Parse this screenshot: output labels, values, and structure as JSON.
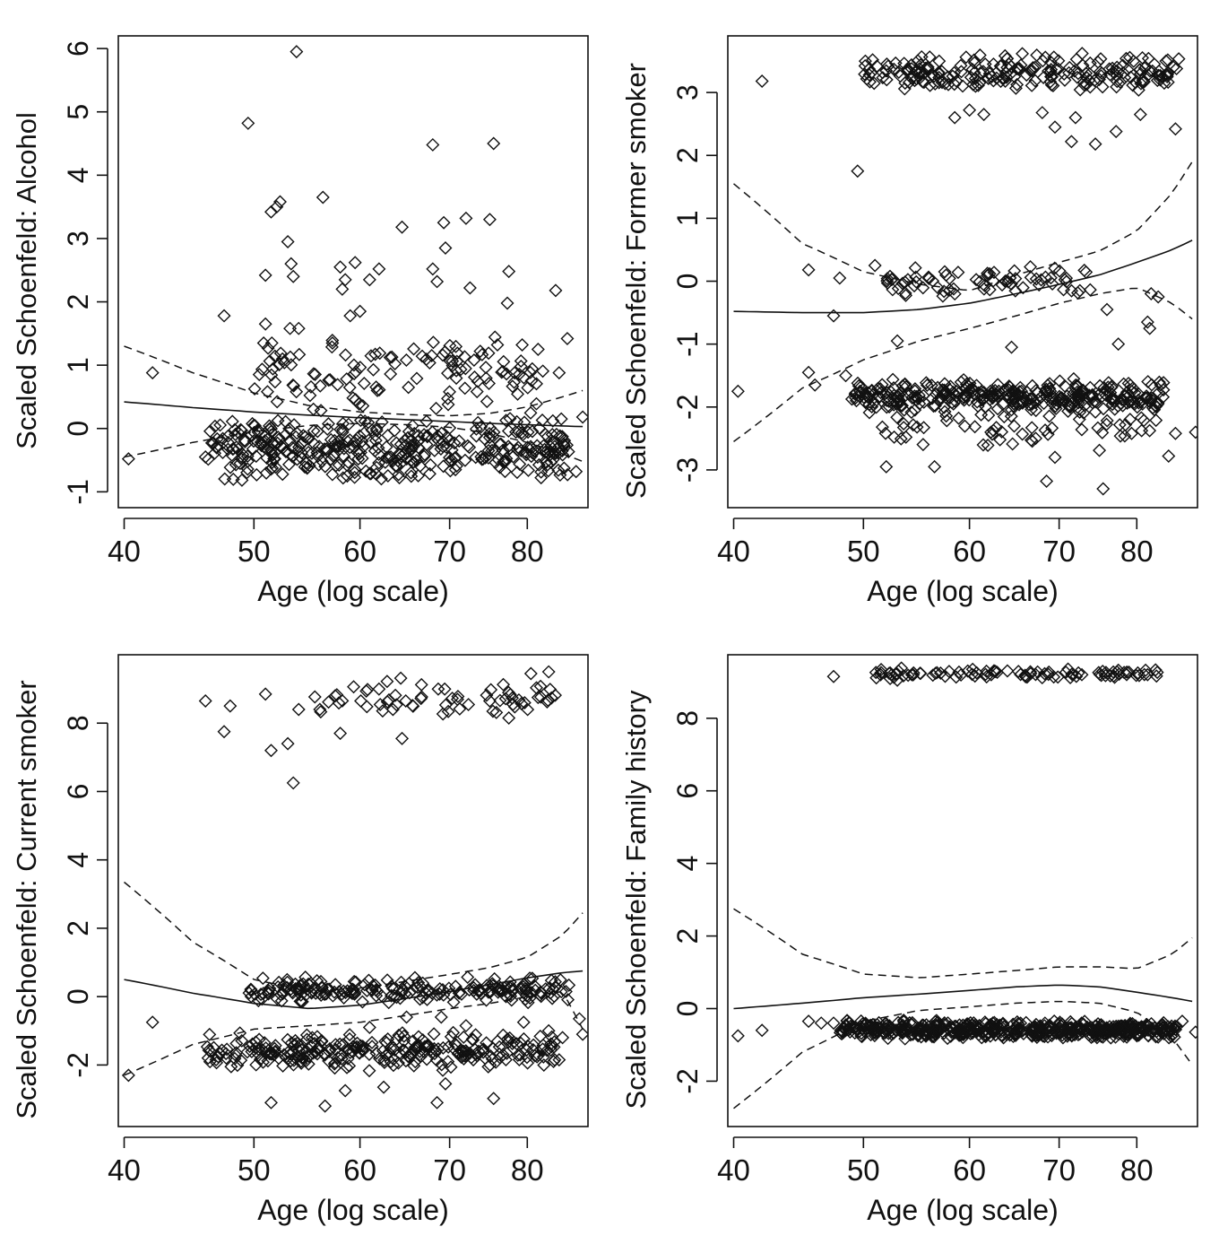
{
  "figure": {
    "layout": "2x2",
    "colors": {
      "ink": "#111111",
      "background": "#ffffff"
    }
  },
  "chart_data": [
    {
      "type": "scatter",
      "title": "",
      "xlabel": "Age (log scale)",
      "ylabel": "Scaled Schoenfeld: Alcohol",
      "xscale": "log",
      "xlim": [
        39.6,
        88.8
      ],
      "ylim": [
        -1.25,
        6.2
      ],
      "xticks": [
        40,
        50,
        60,
        70,
        80
      ],
      "yticks": [
        -1,
        0,
        1,
        2,
        3,
        4,
        5,
        6
      ],
      "marker": "open-diamond",
      "fit": {
        "x": [
          40,
          45,
          50,
          55,
          60,
          65,
          70,
          75,
          80,
          85,
          88
        ],
        "y": [
          0.42,
          0.33,
          0.26,
          0.21,
          0.17,
          0.14,
          0.11,
          0.08,
          0.06,
          0.04,
          0.03
        ],
        "lower": [
          -0.45,
          -0.22,
          -0.05,
          0.05,
          0.08,
          0.06,
          0.02,
          -0.08,
          -0.22,
          -0.4,
          -0.52
        ],
        "upper": [
          1.3,
          0.88,
          0.56,
          0.36,
          0.26,
          0.22,
          0.2,
          0.24,
          0.34,
          0.5,
          0.6
        ]
      },
      "clusters": [
        {
          "xmin": 46,
          "xmax": 86,
          "ymin": -0.85,
          "ymax": 0.2,
          "n": 380
        },
        {
          "xmin": 50,
          "xmax": 84,
          "ymin": 0.2,
          "ymax": 1.5,
          "n": 120
        }
      ],
      "points": [
        [
          40.3,
          -0.48
        ],
        [
          42,
          0.88
        ],
        [
          46,
          -0.45
        ],
        [
          47.5,
          1.78
        ],
        [
          49.5,
          4.82
        ],
        [
          50,
          0.05
        ],
        [
          51,
          1.65
        ],
        [
          51,
          2.42
        ],
        [
          51.5,
          3.42
        ],
        [
          52,
          3.5
        ],
        [
          52.3,
          3.58
        ],
        [
          53,
          2.95
        ],
        [
          53.3,
          2.6
        ],
        [
          53.5,
          2.4
        ],
        [
          53.2,
          1.58
        ],
        [
          54,
          1.58
        ],
        [
          53.8,
          5.95
        ],
        [
          56.3,
          3.65
        ],
        [
          58,
          2.55
        ],
        [
          58.2,
          2.2
        ],
        [
          58.5,
          2.35
        ],
        [
          59.5,
          2.62
        ],
        [
          59,
          1.78
        ],
        [
          60,
          1.85
        ],
        [
          61,
          2.35
        ],
        [
          62,
          2.52
        ],
        [
          64.5,
          3.18
        ],
        [
          68,
          4.48
        ],
        [
          68,
          2.52
        ],
        [
          68.5,
          2.32
        ],
        [
          69.3,
          3.25
        ],
        [
          69.5,
          2.85
        ],
        [
          72,
          3.32
        ],
        [
          72.5,
          2.22
        ],
        [
          75,
          3.3
        ],
        [
          75.5,
          4.5
        ],
        [
          77.5,
          2.48
        ],
        [
          77.3,
          1.98
        ],
        [
          76,
          1.32
        ],
        [
          79.3,
          1.32
        ],
        [
          81.5,
          1.25
        ],
        [
          84,
          2.18
        ],
        [
          84.5,
          0.88
        ],
        [
          85.7,
          1.42
        ],
        [
          87,
          -0.68
        ],
        [
          88,
          0.18
        ],
        [
          58.7,
          -0.75
        ],
        [
          61.7,
          -0.72
        ],
        [
          65.5,
          -0.7
        ],
        [
          70.7,
          -0.65
        ]
      ]
    },
    {
      "type": "scatter",
      "title": "",
      "xlabel": "Age (log scale)",
      "ylabel": "Scaled Schoenfeld: Former smoker",
      "xscale": "log",
      "xlim": [
        39.6,
        88.8
      ],
      "ylim": [
        -3.6,
        3.9
      ],
      "xticks": [
        40,
        50,
        60,
        70,
        80
      ],
      "yticks": [
        -3,
        -2,
        -1,
        0,
        1,
        2,
        3
      ],
      "marker": "open-diamond",
      "fit": {
        "x": [
          40,
          45,
          50,
          55,
          60,
          65,
          70,
          75,
          80,
          85,
          88
        ],
        "y": [
          -0.48,
          -0.5,
          -0.5,
          -0.45,
          -0.35,
          -0.2,
          -0.05,
          0.1,
          0.3,
          0.5,
          0.65
        ],
        "lower": [
          -2.55,
          -1.7,
          -1.25,
          -0.95,
          -0.75,
          -0.55,
          -0.35,
          -0.2,
          -0.1,
          -0.35,
          -0.6
        ],
        "upper": [
          1.55,
          0.6,
          0.15,
          -0.05,
          -0.15,
          0.1,
          0.3,
          0.48,
          0.8,
          1.4,
          1.9
        ]
      },
      "clusters": [
        {
          "xmin": 50,
          "xmax": 86,
          "ymin": 3.0,
          "ymax": 3.65,
          "n": 220
        },
        {
          "xmin": 49,
          "xmax": 84,
          "ymin": -2.1,
          "ymax": -1.55,
          "n": 330
        },
        {
          "xmin": 51,
          "xmax": 83,
          "ymin": -2.7,
          "ymax": -2.0,
          "n": 60
        },
        {
          "xmin": 52,
          "xmax": 74,
          "ymin": -0.3,
          "ymax": 0.3,
          "n": 70
        }
      ],
      "points": [
        [
          42,
          3.18
        ],
        [
          49.5,
          1.75
        ],
        [
          58.5,
          2.6
        ],
        [
          60,
          2.72
        ],
        [
          61.5,
          2.65
        ],
        [
          68,
          2.68
        ],
        [
          69.5,
          2.45
        ],
        [
          71.5,
          2.22
        ],
        [
          72,
          2.6
        ],
        [
          74.5,
          2.18
        ],
        [
          77.2,
          2.38
        ],
        [
          80.5,
          2.65
        ],
        [
          85.5,
          2.42
        ],
        [
          40.3,
          -1.75
        ],
        [
          45.5,
          -1.45
        ],
        [
          46,
          -1.65
        ],
        [
          47.5,
          -0.55
        ],
        [
          45.5,
          0.18
        ],
        [
          48,
          0.05
        ],
        [
          51,
          0.25
        ],
        [
          57.5,
          0.15
        ],
        [
          64.5,
          -1.05
        ],
        [
          76,
          -0.45
        ],
        [
          77.5,
          -1.0
        ],
        [
          81.5,
          -0.65
        ],
        [
          81.8,
          -0.75
        ],
        [
          82,
          -0.2
        ],
        [
          83,
          -0.25
        ],
        [
          88.5,
          -2.4
        ],
        [
          84.5,
          -2.78
        ],
        [
          85.5,
          -2.42
        ],
        [
          75.5,
          -3.3
        ],
        [
          68.5,
          -3.18
        ],
        [
          56.5,
          -2.95
        ],
        [
          52,
          -2.95
        ],
        [
          69.5,
          -2.8
        ],
        [
          53,
          -0.95
        ],
        [
          48.5,
          -1.5
        ]
      ]
    },
    {
      "type": "scatter",
      "title": "",
      "xlabel": "Age (log scale)",
      "ylabel": "Scaled Schoenfeld: Current smoker",
      "xscale": "log",
      "xlim": [
        39.6,
        88.8
      ],
      "ylim": [
        -3.8,
        10
      ],
      "xticks": [
        40,
        50,
        60,
        70,
        80
      ],
      "yticks": [
        -2,
        0,
        2,
        4,
        6,
        8
      ],
      "marker": "open-diamond",
      "fit": {
        "x": [
          40,
          45,
          50,
          55,
          60,
          65,
          70,
          75,
          80,
          85,
          88
        ],
        "y": [
          0.5,
          0.1,
          -0.2,
          -0.35,
          -0.25,
          -0.05,
          0.15,
          0.35,
          0.55,
          0.7,
          0.75
        ],
        "lower": [
          -2.3,
          -1.4,
          -0.95,
          -0.85,
          -0.75,
          -0.55,
          -0.35,
          -0.2,
          0.0,
          0.15,
          -0.95
        ],
        "upper": [
          3.35,
          1.6,
          0.5,
          0.15,
          0.25,
          0.45,
          0.65,
          0.85,
          1.15,
          1.8,
          2.45
        ]
      },
      "clusters": [
        {
          "xmin": 49.5,
          "xmax": 86,
          "ymin": -0.2,
          "ymax": 0.6,
          "n": 200
        },
        {
          "xmin": 46,
          "xmax": 84,
          "ymin": -2.2,
          "ymax": -1.0,
          "n": 280
        },
        {
          "xmin": 55,
          "xmax": 84,
          "ymin": 8.1,
          "ymax": 9.4,
          "n": 60
        }
      ],
      "points": [
        [
          40.3,
          -2.3
        ],
        [
          42,
          -0.75
        ],
        [
          46,
          8.65
        ],
        [
          47.5,
          7.75
        ],
        [
          48,
          8.5
        ],
        [
          51,
          8.85
        ],
        [
          51.5,
          7.2
        ],
        [
          53,
          7.4
        ],
        [
          53.5,
          6.25
        ],
        [
          54,
          8.4
        ],
        [
          56,
          8.4
        ],
        [
          57.5,
          8.8
        ],
        [
          58,
          7.7
        ],
        [
          63.5,
          8.4
        ],
        [
          64.5,
          7.55
        ],
        [
          75,
          8.65
        ],
        [
          77.5,
          8.15
        ],
        [
          81.5,
          8.75
        ],
        [
          80.5,
          9.45
        ],
        [
          83,
          9.5
        ],
        [
          51.5,
          -3.1
        ],
        [
          56.5,
          -3.2
        ],
        [
          68.5,
          -3.1
        ],
        [
          75.5,
          -2.98
        ],
        [
          58.5,
          -2.75
        ],
        [
          69.5,
          -2.55
        ],
        [
          62.5,
          -2.65
        ],
        [
          84.5,
          -1.85
        ],
        [
          85.5,
          0.15
        ],
        [
          87.5,
          -0.65
        ],
        [
          61,
          -0.9
        ],
        [
          65,
          -0.6
        ],
        [
          69,
          -0.6
        ],
        [
          72,
          -0.85
        ],
        [
          79.5,
          -0.75
        ],
        [
          83,
          -1.0
        ],
        [
          85,
          -1.2
        ],
        [
          88,
          -1.1
        ]
      ]
    },
    {
      "type": "scatter",
      "title": "",
      "xlabel": "Age (log scale)",
      "ylabel": "Scaled Schoenfeld: Family history",
      "xscale": "log",
      "xlim": [
        39.6,
        88.8
      ],
      "ylim": [
        -3.25,
        9.75
      ],
      "xticks": [
        40,
        50,
        60,
        70,
        80
      ],
      "yticks": [
        -2,
        0,
        2,
        4,
        6,
        8
      ],
      "marker": "open-diamond",
      "fit": {
        "x": [
          40,
          45,
          50,
          55,
          60,
          65,
          70,
          75,
          80,
          85,
          88
        ],
        "y": [
          0.0,
          0.15,
          0.3,
          0.4,
          0.5,
          0.6,
          0.65,
          0.6,
          0.45,
          0.3,
          0.2
        ],
        "lower": [
          -2.75,
          -1.2,
          -0.35,
          -0.05,
          0.05,
          0.15,
          0.2,
          0.15,
          -0.1,
          -0.8,
          -1.55
        ],
        "upper": [
          2.75,
          1.5,
          0.95,
          0.85,
          0.95,
          1.05,
          1.15,
          1.15,
          1.1,
          1.5,
          1.95
        ]
      },
      "clusters": [
        {
          "xmin": 48,
          "xmax": 86,
          "ymin": -0.85,
          "ymax": -0.3,
          "n": 520
        },
        {
          "xmin": 51,
          "xmax": 83,
          "ymin": 9.05,
          "ymax": 9.4,
          "n": 90
        }
      ],
      "points": [
        [
          40.3,
          -0.75
        ],
        [
          42,
          -0.6
        ],
        [
          45.5,
          -0.35
        ],
        [
          46.5,
          -0.4
        ],
        [
          47.5,
          -0.4
        ],
        [
          47.5,
          9.15
        ],
        [
          51.5,
          9.2
        ],
        [
          52.5,
          9.2
        ],
        [
          53,
          9.05
        ],
        [
          54.5,
          9.25
        ],
        [
          86.5,
          -0.35
        ],
        [
          88.5,
          -0.65
        ]
      ]
    }
  ]
}
